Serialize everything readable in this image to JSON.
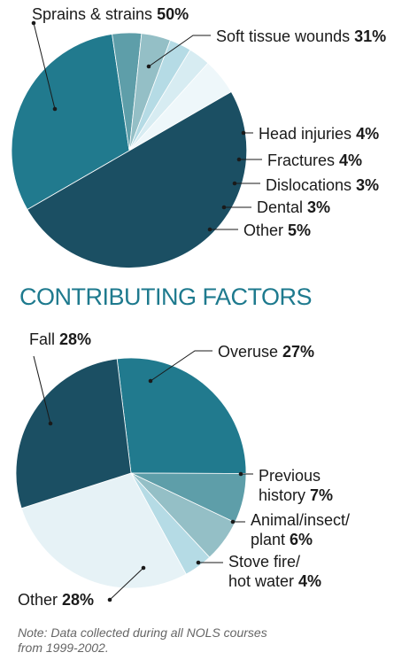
{
  "chart_data": [
    {
      "type": "pie",
      "title": "",
      "slices": [
        {
          "label": "Sprains & strains",
          "value": 50,
          "pct_label": "50%",
          "color": "#1b4f63"
        },
        {
          "label": "Soft tissue wounds",
          "value": 31,
          "pct_label": "31%",
          "color": "#217a8e"
        },
        {
          "label": "Head injuries",
          "value": 4,
          "pct_label": "4%",
          "color": "#5e9ea9"
        },
        {
          "label": "Fractures",
          "value": 4,
          "pct_label": "4%",
          "color": "#94bfc6"
        },
        {
          "label": "Dislocations",
          "value": 3,
          "pct_label": "3%",
          "color": "#b5dbe5"
        },
        {
          "label": "Dental",
          "value": 3,
          "pct_label": "3%",
          "color": "#d7ecf2"
        },
        {
          "label": "Other",
          "value": 5,
          "pct_label": "5%",
          "color": "#eef7fa"
        }
      ]
    },
    {
      "type": "pie",
      "title": "CONTRIBUTING FACTORS",
      "slices": [
        {
          "label": "Overuse",
          "value": 27,
          "pct_label": "27%",
          "color": "#217a8e"
        },
        {
          "label": "Previous history",
          "value": 7,
          "pct_label": "7%",
          "color": "#5e9ea9"
        },
        {
          "label": "Animal/insect/ plant",
          "value": 6,
          "pct_label": "6%",
          "color": "#94bfc6"
        },
        {
          "label": "Stove fire/ hot water",
          "value": 4,
          "pct_label": "4%",
          "color": "#b5dbe5"
        },
        {
          "label": "Other",
          "value": 28,
          "pct_label": "28%",
          "color": "#e6f2f6"
        },
        {
          "label": "Fall",
          "value": 28,
          "pct_label": "28%",
          "color": "#1b4f63"
        }
      ]
    }
  ],
  "note": "Note: Data collected during all NOLS courses from 1999-2002."
}
